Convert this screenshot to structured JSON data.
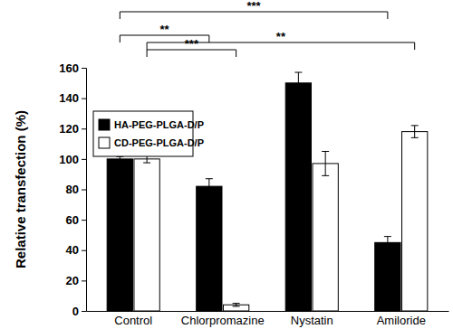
{
  "chart_data": {
    "type": "bar",
    "y_label": "Relative transfection (%)",
    "categories": [
      "Control",
      "Chlorpromazine",
      "Nystatin",
      "Amiloride"
    ],
    "series": [
      {
        "name": "HA-PEG-PLGA-D/P",
        "color": "#000000",
        "values": [
          100,
          82,
          150,
          45
        ],
        "errors": [
          1.5,
          5,
          7,
          4
        ]
      },
      {
        "name": "CD-PEG-PLGA-D/P",
        "color": "#ffffff",
        "values": [
          100,
          4,
          97,
          118
        ],
        "errors": [
          2.5,
          1,
          8,
          4
        ]
      }
    ],
    "ylim": [
      0,
      160
    ],
    "yticks": [
      0,
      20,
      40,
      60,
      80,
      100,
      120,
      140,
      160
    ],
    "grid": false,
    "legend": "upper left",
    "annotations": [
      {
        "text": "***",
        "from": "Control",
        "to": "Amiloride",
        "series": "HA-PEG-PLGA-D/P"
      },
      {
        "text": "**",
        "from": "Control",
        "to": "Chlorpromazine",
        "series": "HA-PEG-PLGA-D/P"
      },
      {
        "text": "***",
        "from": "Control",
        "to": "Chlorpromazine",
        "series": "CD-PEG-PLGA-D/P"
      },
      {
        "text": "**",
        "from": "Control",
        "to": "Amiloride",
        "series": "CD-PEG-PLGA-D/P"
      }
    ]
  }
}
